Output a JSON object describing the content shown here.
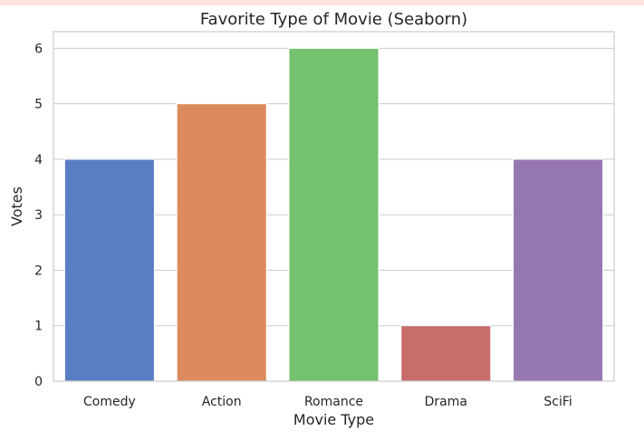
{
  "chart_data": {
    "type": "bar",
    "title": "Favorite Type of Movie (Seaborn)",
    "xlabel": "Movie Type",
    "ylabel": "Votes",
    "categories": [
      "Comedy",
      "Action",
      "Romance",
      "Drama",
      "SciFi"
    ],
    "values": [
      4,
      5,
      6,
      1,
      4
    ],
    "colors": [
      "#5a7ec3",
      "#dc8b5e",
      "#74c16f",
      "#c76d6b",
      "#9577b0"
    ],
    "ylim": [
      0,
      6.3
    ],
    "yticks": [
      "0",
      "1",
      "2",
      "3",
      "4",
      "5",
      "6"
    ],
    "grid": true,
    "legend": "none"
  }
}
